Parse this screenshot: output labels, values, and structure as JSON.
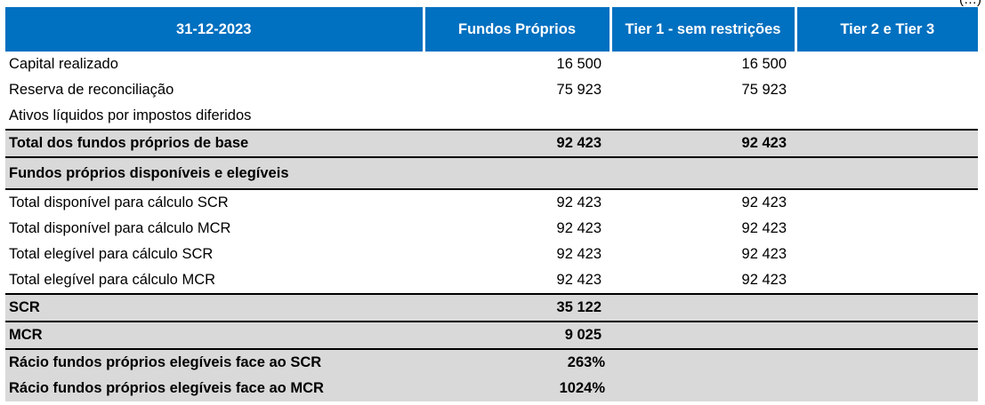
{
  "corner_note": "(…)",
  "header": {
    "date": "31-12-2023",
    "col1": "Fundos Próprios",
    "col2": "Tier 1 - sem restrições",
    "col3": "Tier 2 e Tier 3"
  },
  "rows": [
    {
      "label": "Capital realizado",
      "v1": "16 500",
      "v2": "16 500",
      "v3": ""
    },
    {
      "label": "Reserva de reconciliação",
      "v1": "75 923",
      "v2": "75 923",
      "v3": ""
    },
    {
      "label": "Ativos líquidos por impostos diferidos",
      "v1": "",
      "v2": "",
      "v3": ""
    },
    {
      "label": "Total dos fundos próprios de base",
      "v1": "92 423",
      "v2": "92 423",
      "v3": ""
    },
    {
      "label": "Fundos próprios disponíveis e elegíveis",
      "v1": "",
      "v2": "",
      "v3": ""
    },
    {
      "label": "Total disponível para cálculo SCR",
      "v1": "92 423",
      "v2": "92 423",
      "v3": ""
    },
    {
      "label": "Total disponível para cálculo MCR",
      "v1": "92 423",
      "v2": "92 423",
      "v3": ""
    },
    {
      "label": "Total elegível para cálculo SCR",
      "v1": "92 423",
      "v2": "92 423",
      "v3": ""
    },
    {
      "label": "Total elegível para cálculo MCR",
      "v1": "92 423",
      "v2": "92 423",
      "v3": ""
    },
    {
      "label": "SCR",
      "v1": "35 122",
      "v2": "",
      "v3": ""
    },
    {
      "label": "MCR",
      "v1": "9 025",
      "v2": "",
      "v3": ""
    },
    {
      "label": "Rácio fundos próprios elegíveis face ao SCR",
      "v1": "263%",
      "v2": "",
      "v3": ""
    },
    {
      "label": "Rácio fundos próprios elegíveis face ao MCR",
      "v1": "1024%",
      "v2": "",
      "v3": ""
    }
  ],
  "colors": {
    "header_bg": "#0070c0",
    "shade_bg": "#d9d9d9"
  }
}
